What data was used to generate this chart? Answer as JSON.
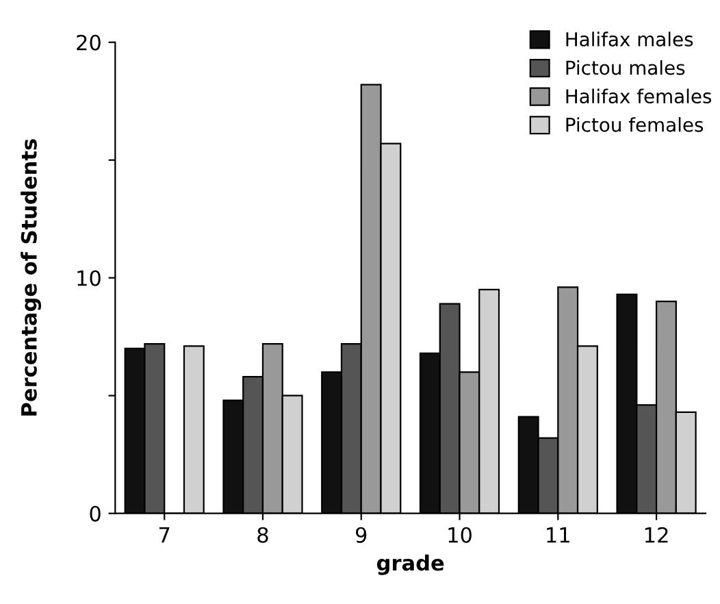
{
  "chart_data": {
    "type": "bar",
    "xlabel": "grade",
    "ylabel": "Percentage of Students",
    "categories": [
      "7",
      "8",
      "9",
      "10",
      "11",
      "12"
    ],
    "series": [
      {
        "name": "Halifax males",
        "color": "#111111",
        "values": [
          7.0,
          4.8,
          6.0,
          6.8,
          4.1,
          9.3
        ]
      },
      {
        "name": "Pictou males",
        "color": "#555555",
        "values": [
          7.2,
          5.8,
          7.2,
          8.9,
          3.2,
          4.6
        ]
      },
      {
        "name": "Halifax females",
        "color": "#999999",
        "values": [
          0,
          7.2,
          18.2,
          6.0,
          9.6,
          9.0
        ]
      },
      {
        "name": "Pictou females",
        "color": "#d0d0d0",
        "values": [
          7.1,
          5.0,
          15.7,
          9.5,
          7.1,
          4.3
        ]
      }
    ],
    "ylim": [
      0,
      20
    ],
    "yticks": [
      0,
      {
        "value": 5,
        "label": null
      },
      10,
      {
        "value": 15,
        "label": null
      },
      20
    ],
    "grid": false,
    "legend": "top right"
  }
}
